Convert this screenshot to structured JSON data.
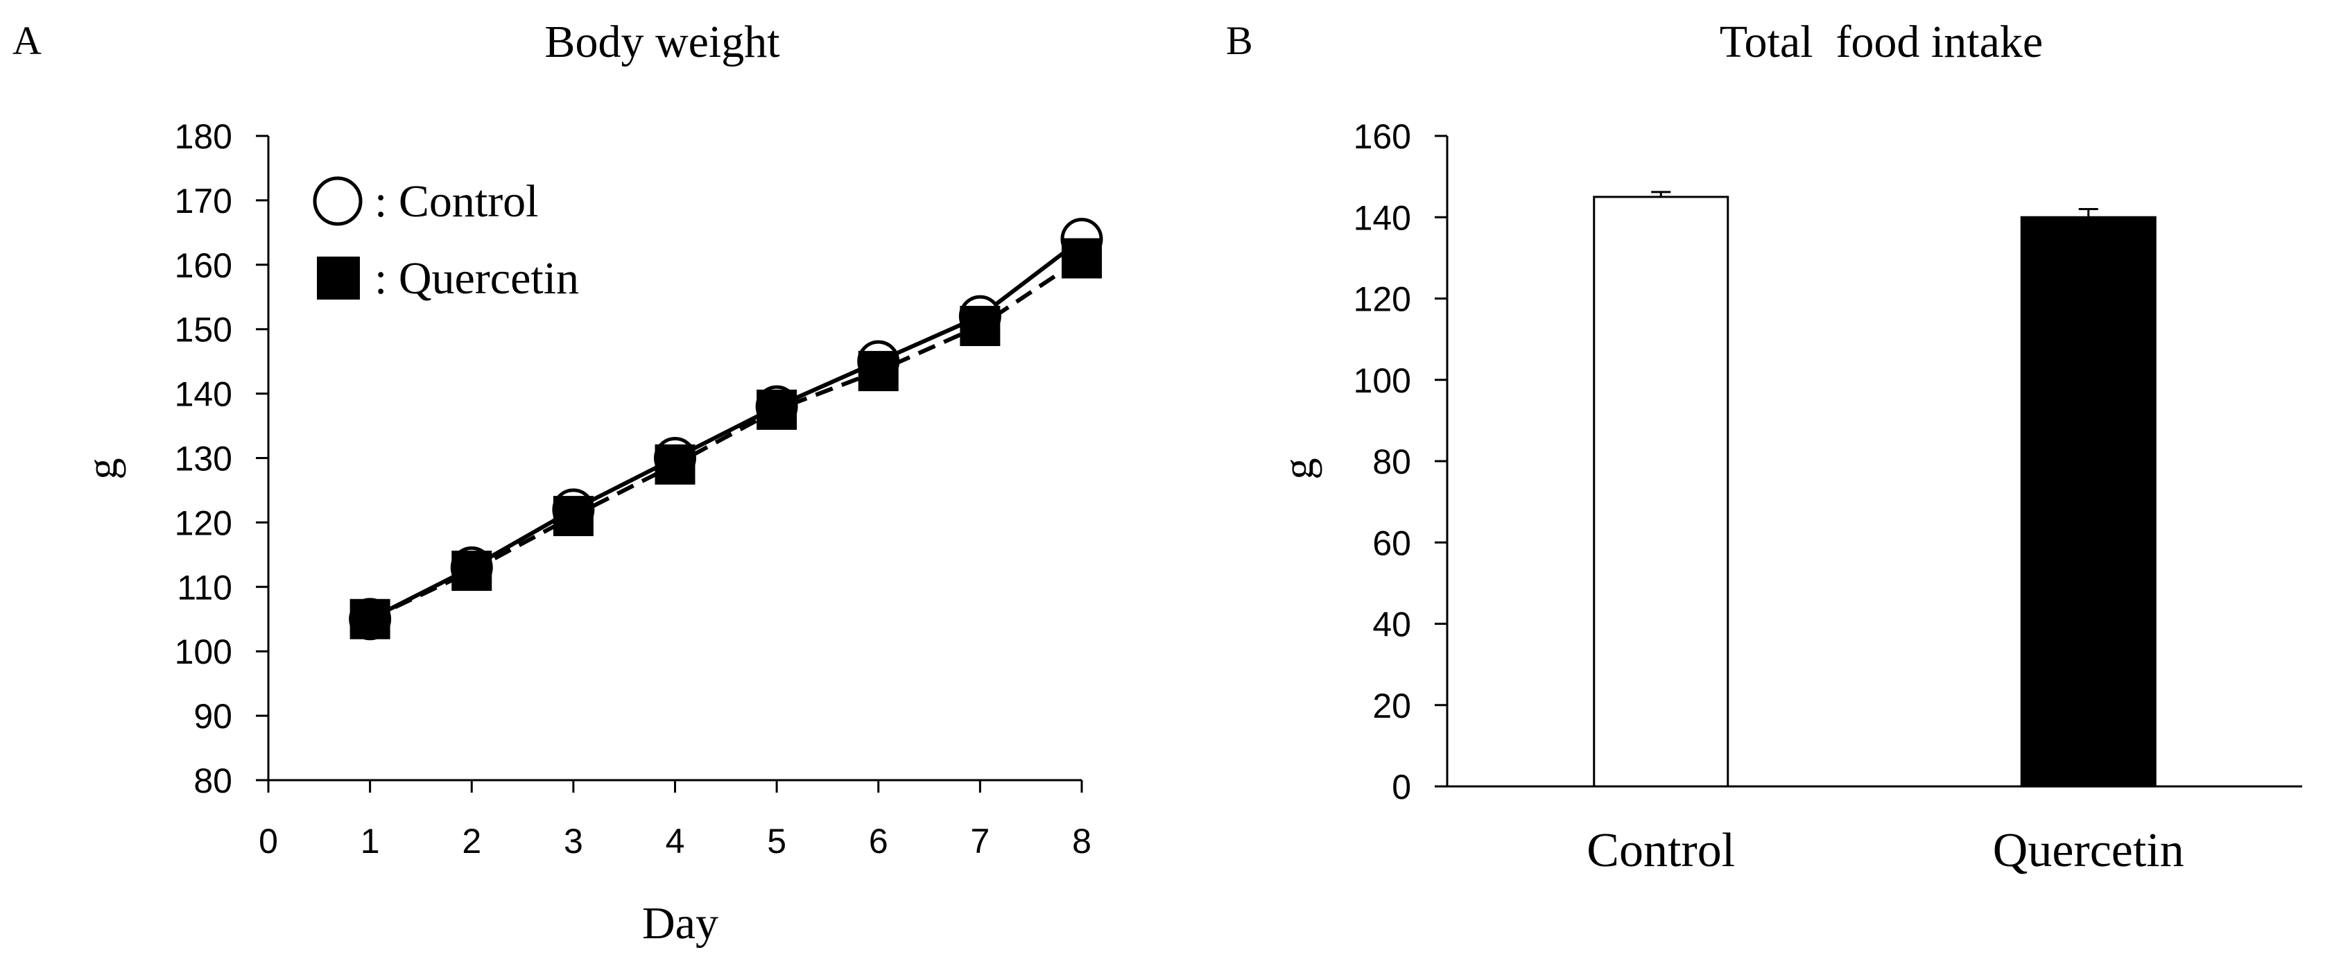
{
  "chart_data": [
    {
      "panel_label": "A",
      "type": "line",
      "title": "Body weight",
      "xlabel": "Day",
      "ylabel": "g",
      "x": [
        1,
        2,
        3,
        4,
        5,
        6,
        7,
        8
      ],
      "x_ticks": [
        0,
        1,
        2,
        3,
        4,
        5,
        6,
        7,
        8
      ],
      "xlim": [
        0,
        8
      ],
      "ylim": [
        80,
        180
      ],
      "y_ticks": [
        80,
        90,
        100,
        110,
        120,
        130,
        140,
        150,
        160,
        170,
        180
      ],
      "grid": false,
      "legend_position": "top-left",
      "series": [
        {
          "name": ": Control",
          "marker": "open-circle",
          "line": "solid",
          "values": [
            105,
            113,
            122,
            130,
            138,
            145,
            152,
            164
          ],
          "errors": [
            0.8,
            1,
            1,
            1,
            1.2,
            1.5,
            1.8,
            1.8
          ]
        },
        {
          "name": ": Quercetin",
          "marker": "filled-square",
          "line": "dashed",
          "values": [
            105,
            112.5,
            121,
            129,
            137.5,
            143.5,
            150.5,
            161
          ],
          "errors": [
            0.8,
            1,
            1,
            1,
            1.2,
            1.5,
            1.8,
            1.8
          ]
        }
      ]
    },
    {
      "panel_label": "B",
      "type": "bar",
      "title": "Total  food intake",
      "xlabel": "",
      "ylabel": "g",
      "categories": [
        "Control",
        "Quercetin"
      ],
      "values": [
        145,
        140
      ],
      "errors": [
        1.2,
        2
      ],
      "colors": [
        "#ffffff",
        "#000000"
      ],
      "ylim": [
        0,
        160
      ],
      "y_ticks": [
        0,
        20,
        40,
        60,
        80,
        100,
        120,
        140,
        160
      ],
      "grid": false
    }
  ]
}
